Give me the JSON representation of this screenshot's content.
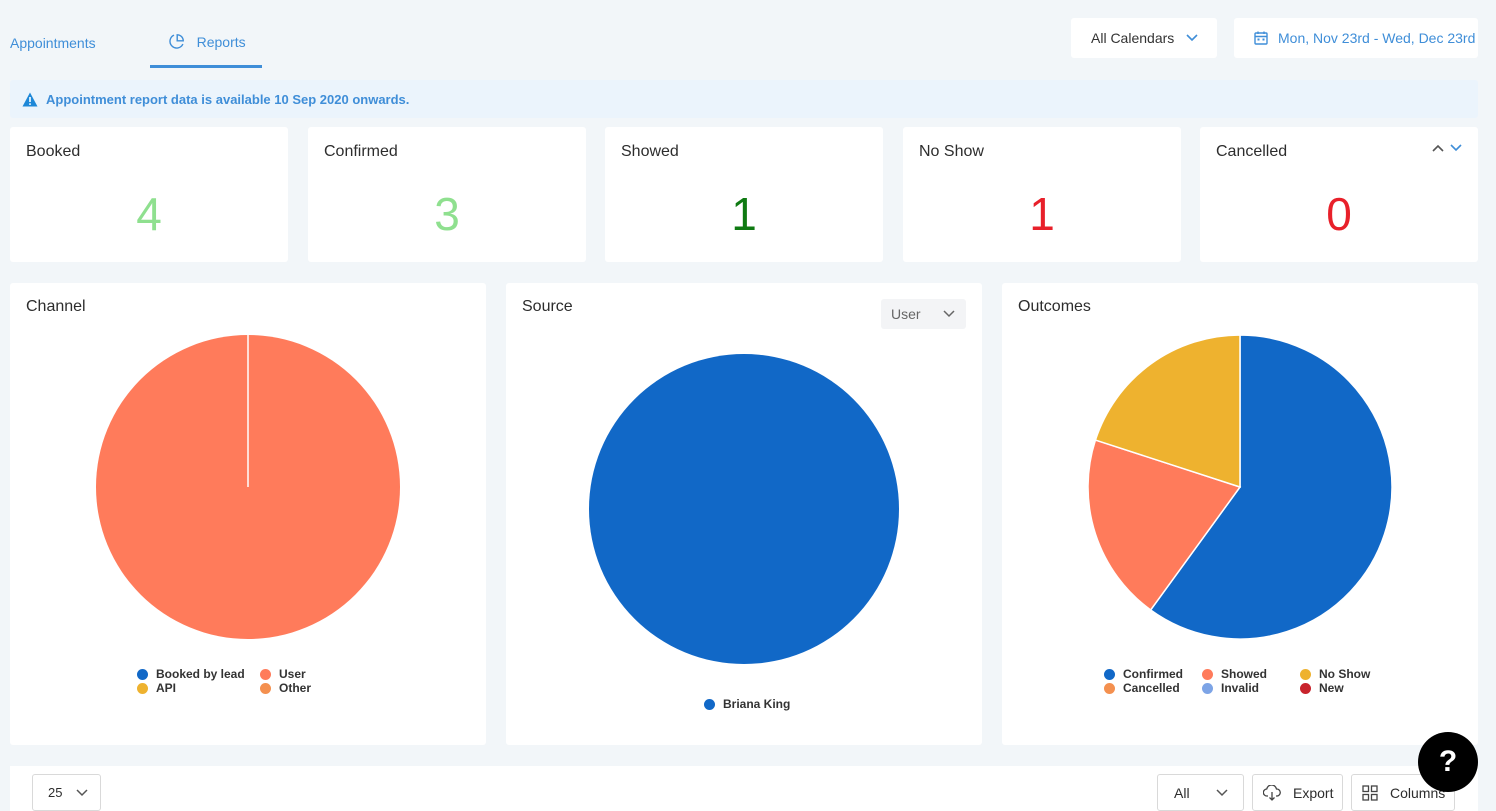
{
  "tabs": {
    "appointments": "Appointments",
    "reports": "Reports"
  },
  "header": {
    "calendars": "All Calendars",
    "date_range": "Mon, Nov 23rd - Wed, Dec 23rd"
  },
  "notice": "Appointment report data is available 10 Sep 2020 onwards.",
  "stats": [
    {
      "label": "Booked",
      "value": "4",
      "color": "#8fe08f"
    },
    {
      "label": "Confirmed",
      "value": "3",
      "color": "#8fe08f"
    },
    {
      "label": "Showed",
      "value": "1",
      "color": "#0f7a12"
    },
    {
      "label": "No Show",
      "value": "1",
      "color": "#e8202a"
    },
    {
      "label": "Cancelled",
      "value": "0",
      "color": "#e8202a"
    }
  ],
  "panels": {
    "channel": {
      "title": "Channel"
    },
    "source": {
      "title": "Source",
      "select": "User"
    },
    "outcomes": {
      "title": "Outcomes"
    }
  },
  "chart_data": [
    {
      "type": "pie",
      "name": "Channel",
      "labels": [
        "Booked by lead",
        "User",
        "API",
        "Other"
      ],
      "values": [
        0,
        1,
        0,
        0
      ],
      "colors": [
        "#1168c7",
        "#ff7b5b",
        "#eeb22f",
        "#f4904f"
      ]
    },
    {
      "type": "pie",
      "name": "Source",
      "labels": [
        "Briana King"
      ],
      "values": [
        1
      ],
      "colors": [
        "#1168c7"
      ]
    },
    {
      "type": "pie",
      "name": "Outcomes",
      "labels": [
        "Confirmed",
        "Showed",
        "No Show",
        "Cancelled",
        "Invalid",
        "New"
      ],
      "values": [
        3,
        1,
        1,
        0,
        0,
        0
      ],
      "colors": [
        "#1168c7",
        "#ff7b5b",
        "#eeb22f",
        "#f4904f",
        "#7da4e6",
        "#c8232c"
      ]
    }
  ],
  "bottom": {
    "page_size": "25",
    "filter": "All",
    "export": "Export",
    "columns": "Columns"
  },
  "help": "?"
}
